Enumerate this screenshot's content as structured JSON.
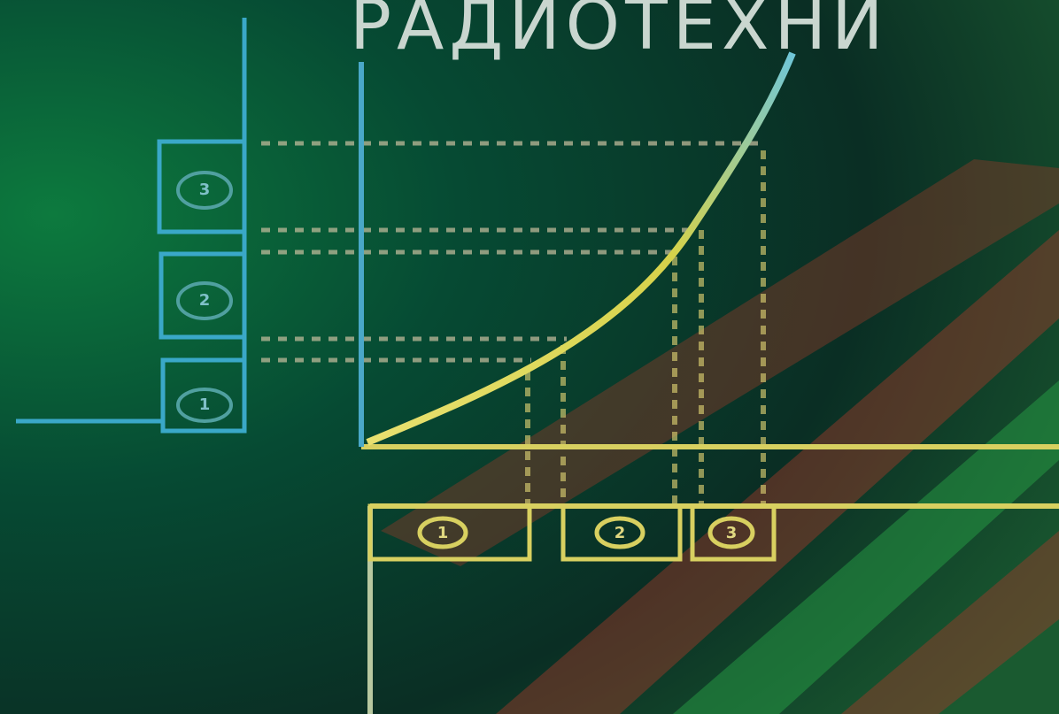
{
  "title": "РАДИОТЕХНИ",
  "left_boxes": [
    "3",
    "2",
    "1"
  ],
  "bottom_boxes": [
    "1",
    "2",
    "3"
  ]
}
